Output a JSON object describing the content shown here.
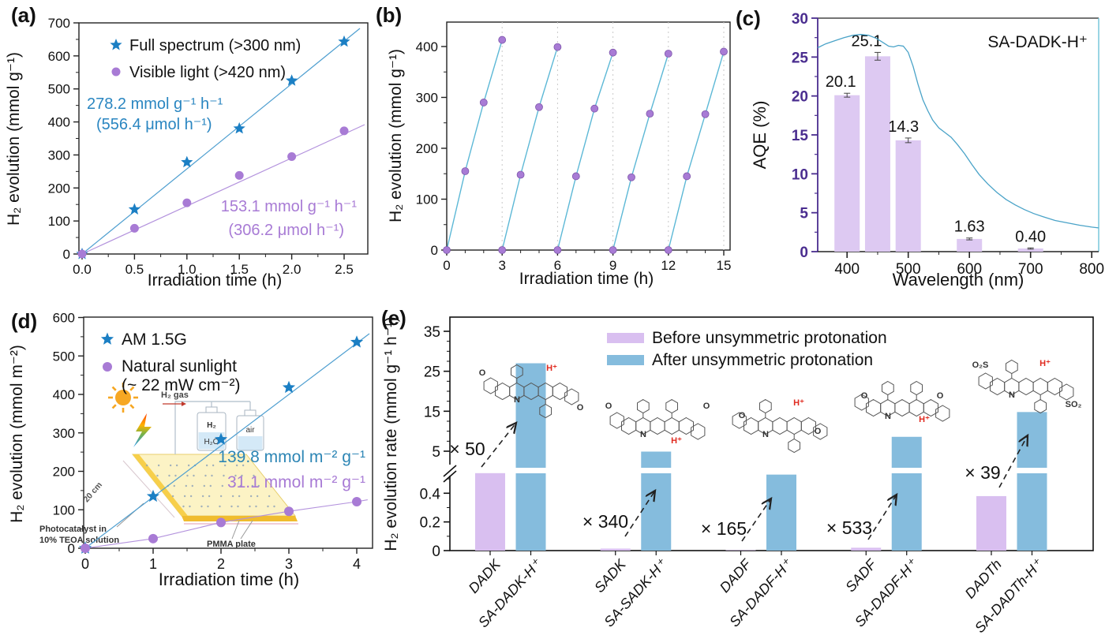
{
  "figure": {
    "panel_labels": {
      "a": "(a)",
      "b": "(b)",
      "c": "(c)",
      "d": "(d)",
      "e": "(e)"
    }
  },
  "chart_data": [
    {
      "id": "a",
      "type": "scatter",
      "xlabel": "Irradiation time (h)",
      "ylabel": "H₂ evolution (mmol g⁻¹)",
      "xticks": [
        "0.0",
        "0.5",
        "1.0",
        "1.5",
        "2.0",
        "2.5"
      ],
      "xtick_vals": [
        0,
        0.5,
        1,
        1.5,
        2,
        2.5
      ],
      "yticks": [
        0,
        100,
        200,
        300,
        400,
        500,
        600,
        700
      ],
      "xlim": [
        0,
        2.74
      ],
      "ylim": [
        0,
        700
      ],
      "series": [
        {
          "name": "Full spectrum (>300 nm)",
          "marker": "star",
          "color": "#1b7fc4",
          "line_color": "#4f9fd0",
          "x": [
            0,
            0.5,
            1.0,
            1.5,
            2.0,
            2.5
          ],
          "y": [
            0,
            135,
            278,
            380,
            525,
            643
          ]
        },
        {
          "name": "Visible light (>420 nm)",
          "marker": "circle",
          "color": "#a87bd5",
          "line_color": "#b392dd",
          "x": [
            0,
            0.5,
            1.0,
            1.5,
            2.0,
            2.5
          ],
          "y": [
            0,
            78,
            155,
            238,
            295,
            373
          ]
        }
      ],
      "annotations": [
        {
          "lines": [
            "278.2 mmol g⁻¹ h⁻¹",
            "(556.4 μmol h⁻¹)"
          ],
          "color": "#2a86c1"
        },
        {
          "lines": [
            "153.1 mmol g⁻¹ h⁻¹",
            "(306.2 μmol h⁻¹)"
          ],
          "color": "#a87bd5"
        }
      ]
    },
    {
      "id": "b",
      "type": "line-cycles",
      "xlabel": "Irradiation time (h)",
      "ylabel": "H₂ evolution (mmol g⁻¹)",
      "xticks": [
        0,
        3,
        6,
        9,
        12,
        15
      ],
      "yticks": [
        0,
        100,
        200,
        300,
        400
      ],
      "xlim": [
        0,
        15.35
      ],
      "ylim": [
        0,
        448
      ],
      "cycle_period": 3,
      "cycles": [
        [
          155,
          290,
          413
        ],
        [
          148,
          281,
          399
        ],
        [
          145,
          278,
          388
        ],
        [
          143,
          268,
          386
        ],
        [
          145,
          267,
          390
        ]
      ],
      "line_color": "#5cb8d6",
      "marker_color": "#a87bd5",
      "grid_color": "#c9c9c9"
    },
    {
      "id": "c",
      "type": "bar+line",
      "xlabel": "Wavelength (nm)",
      "ylabel": "AQE (%)",
      "annotation": "SA-DADK-H⁺",
      "xticks": [
        400,
        500,
        600,
        700,
        800
      ],
      "yticks": [
        0,
        5,
        10,
        15,
        20,
        25,
        30
      ],
      "xlim": [
        352,
        811
      ],
      "ylim": [
        0,
        30
      ],
      "bars": {
        "x": [
          400,
          450,
          500,
          600,
          700
        ],
        "values": [
          20.1,
          25.1,
          14.3,
          1.63,
          0.4
        ],
        "labels": [
          "20.1",
          "25.1",
          "14.3",
          "1.63",
          "0.40"
        ],
        "errors": [
          0.25,
          0.5,
          0.3,
          0.12,
          0.08
        ],
        "color": "#ddc9f2"
      },
      "spectrum": {
        "color": "#4aa3c8",
        "points": [
          [
            352,
            26.2
          ],
          [
            365,
            26.7
          ],
          [
            380,
            27.1
          ],
          [
            395,
            27.5
          ],
          [
            410,
            27.8
          ],
          [
            422,
            27.9
          ],
          [
            435,
            27.8
          ],
          [
            448,
            27.4
          ],
          [
            458,
            26.9
          ],
          [
            468,
            26.4
          ],
          [
            476,
            26.3
          ],
          [
            484,
            26.5
          ],
          [
            492,
            26.4
          ],
          [
            500,
            25.6
          ],
          [
            508,
            23.8
          ],
          [
            516,
            21.5
          ],
          [
            524,
            19.5
          ],
          [
            532,
            18.1
          ],
          [
            540,
            16.9
          ],
          [
            550,
            15.9
          ],
          [
            560,
            15.3
          ],
          [
            570,
            14.7
          ],
          [
            580,
            13.8
          ],
          [
            592,
            12.6
          ],
          [
            604,
            11.2
          ],
          [
            616,
            9.9
          ],
          [
            630,
            8.7
          ],
          [
            645,
            7.6
          ],
          [
            660,
            6.7
          ],
          [
            675,
            6.0
          ],
          [
            690,
            5.4
          ],
          [
            705,
            4.9
          ],
          [
            720,
            4.5
          ],
          [
            740,
            4.0
          ],
          [
            760,
            3.7
          ],
          [
            780,
            3.4
          ],
          [
            800,
            3.15
          ],
          [
            811,
            3.05
          ]
        ]
      },
      "axis_color_left": "#4a2d8f",
      "axis_color_right": "#6fc3d8"
    },
    {
      "id": "d",
      "type": "scatter",
      "xlabel": "Irradiation time (h)",
      "ylabel": "H₂ evolution (mmol m⁻²)",
      "xticks": [
        0,
        1,
        2,
        3,
        4
      ],
      "yticks": [
        0,
        100,
        200,
        300,
        400,
        500,
        600
      ],
      "xlim": [
        0,
        4.25
      ],
      "ylim": [
        0,
        600
      ],
      "series": [
        {
          "name": "AM 1.5G",
          "marker": "star",
          "color": "#1b7fc4",
          "line_color": "#4f9fd0",
          "x": [
            0,
            1,
            2,
            3,
            4
          ],
          "y": [
            0,
            135,
            283,
            418,
            536
          ]
        },
        {
          "name": "Natural sunlight",
          "name_line2": "(~ 22 mW cm⁻²)",
          "marker": "circle",
          "color": "#a87bd5",
          "line_color": "#b392dd",
          "x": [
            0,
            1,
            2,
            3,
            4
          ],
          "y": [
            0,
            25,
            67,
            96,
            121
          ]
        }
      ],
      "annotations": [
        {
          "lines": [
            "139.8 mmol m⁻² g⁻¹"
          ],
          "color": "#2d86b5"
        },
        {
          "lines": [
            "31.1 mmol m⁻² g⁻¹"
          ],
          "color": "#a87bd5"
        }
      ],
      "inset": {
        "h2_gas": "H₂ gas",
        "bottle1_top": "H₂",
        "bottle1_bottom": "H₂O",
        "bottle2": "air",
        "dimension": "20 cm",
        "photocatalyst": [
          "Photocatalyst in",
          "10% TEOA solution"
        ],
        "pmma": "PMMA plate"
      }
    },
    {
      "id": "e",
      "type": "broken-bar",
      "ylabel": "H₂ evolution rate (mmol g⁻¹ h⁻¹)",
      "yticks_upper": [
        5,
        15,
        25,
        35
      ],
      "yticks_lower": [
        "0",
        "0.2",
        "0.4"
      ],
      "ytick_lower_vals": [
        0,
        0.2,
        0.4
      ],
      "legend": [
        "Before unsymmetric protonation",
        "After unsymmetric protonation"
      ],
      "colors": {
        "before": "#d9bff0",
        "after": "#85bcdd"
      },
      "groups": [
        {
          "before_label": "DADK",
          "after_label": "SA-DADK-H⁺",
          "before": 0.54,
          "after": 27,
          "mult": "× 50"
        },
        {
          "before_label": "SADK",
          "after_label": "SA-SADK-H⁺",
          "before": 0.014,
          "after": 4.9,
          "mult": "× 340"
        },
        {
          "before_label": "DADF",
          "after_label": "SA-DADF-H⁺",
          "before": 0.003,
          "after": 0.53,
          "mult": "× 165"
        },
        {
          "before_label": "SADF",
          "after_label": "SA-DADF-H⁺",
          "before": 0.02,
          "after": 8.6,
          "mult": "× 533"
        },
        {
          "before_label": "DADTh",
          "after_label": "SA-DADTh-H⁺",
          "before": 0.38,
          "after": 14.8,
          "mult": "× 39"
        }
      ],
      "structures": [
        {
          "id": "s1",
          "name": "sa-dadk-h-plus-structure",
          "labels": [
            {
              "t": "O"
            },
            {
              "t": "N"
            },
            {
              "t": "H⁺",
              "red": true
            },
            {
              "t": "O"
            }
          ]
        },
        {
          "id": "s2",
          "name": "sa-sadk-h-plus-structure",
          "labels": [
            {
              "t": "O"
            },
            {
              "t": "O"
            },
            {
              "t": "N"
            },
            {
              "t": "H⁺",
              "red": true
            }
          ]
        },
        {
          "id": "s3",
          "name": "sa-dadf-h-plus-structure",
          "labels": [
            {
              "t": "O"
            },
            {
              "t": "O"
            },
            {
              "t": "N"
            },
            {
              "t": "H⁺",
              "red": true
            }
          ]
        },
        {
          "id": "s4",
          "name": "sa-sadf-h-plus-structure",
          "labels": [
            {
              "t": "O"
            },
            {
              "t": "O"
            },
            {
              "t": "N"
            },
            {
              "t": "H⁺",
              "red": true
            }
          ]
        },
        {
          "id": "s5",
          "name": "sa-dadth-h-plus-structure",
          "labels": [
            {
              "t": "O₂S"
            },
            {
              "t": "N"
            },
            {
              "t": "H⁺",
              "red": true
            },
            {
              "t": "SO₂"
            }
          ]
        }
      ]
    }
  ]
}
